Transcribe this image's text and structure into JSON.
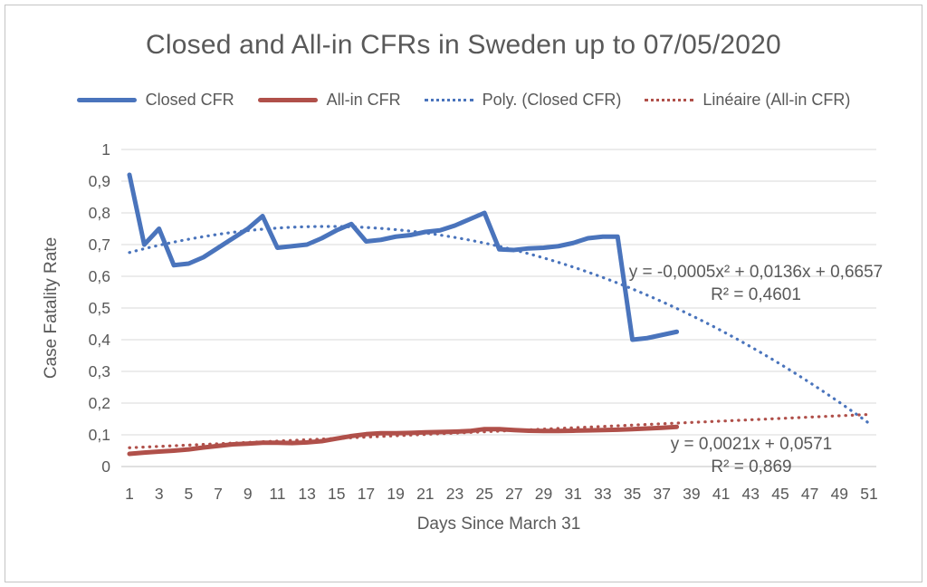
{
  "chart_data": {
    "type": "line",
    "title": "Closed and All-in CFRs in Sweden up to 07/05/2020",
    "xlabel": "Days Since March 31",
    "ylabel": "Case Fatality Rate",
    "decimal_separator": ",",
    "grid": "horizontal",
    "colors": {
      "closed_cfr_blue": "#4A74BC",
      "all_in_cfr_red": "#B0504A",
      "text": "#595959",
      "gridline": "#D9D9D9",
      "axis_line": "#C0C0C0"
    },
    "x_axis": {
      "min": 1,
      "max": 51,
      "ticks": [
        1,
        3,
        5,
        7,
        9,
        11,
        13,
        15,
        17,
        19,
        21,
        23,
        25,
        27,
        29,
        31,
        33,
        35,
        37,
        39,
        41,
        43,
        45,
        47,
        49,
        51
      ]
    },
    "y_axis": {
      "min": 0,
      "max": 1,
      "ticks": [
        {
          "value": 0,
          "label": "0"
        },
        {
          "value": 0.1,
          "label": "0,1"
        },
        {
          "value": 0.2,
          "label": "0,2"
        },
        {
          "value": 0.3,
          "label": "0,3"
        },
        {
          "value": 0.4,
          "label": "0,4"
        },
        {
          "value": 0.5,
          "label": "0,5"
        },
        {
          "value": 0.6,
          "label": "0,6"
        },
        {
          "value": 0.7,
          "label": "0,7"
        },
        {
          "value": 0.8,
          "label": "0,8"
        },
        {
          "value": 0.9,
          "label": "0,9"
        },
        {
          "value": 1,
          "label": "1"
        }
      ]
    },
    "series": [
      {
        "name": "Closed CFR",
        "color": "#4A74BC",
        "line_style": "solid",
        "x_start_day": 1,
        "values": [
          0.92,
          0.7,
          0.75,
          0.635,
          0.64,
          0.66,
          0.69,
          0.72,
          0.75,
          0.79,
          0.69,
          0.695,
          0.7,
          0.72,
          0.745,
          0.765,
          0.71,
          0.715,
          0.725,
          0.73,
          0.74,
          0.745,
          0.76,
          0.78,
          0.8,
          0.685,
          0.683,
          0.688,
          0.69,
          0.695,
          0.705,
          0.72,
          0.725,
          0.725,
          0.4,
          0.405,
          0.415,
          0.425
        ]
      },
      {
        "name": "All-in CFR",
        "color": "#B0504A",
        "line_style": "solid",
        "x_start_day": 1,
        "values": [
          0.04,
          0.044,
          0.047,
          0.05,
          0.054,
          0.06,
          0.065,
          0.07,
          0.072,
          0.075,
          0.075,
          0.074,
          0.076,
          0.08,
          0.088,
          0.096,
          0.102,
          0.105,
          0.105,
          0.106,
          0.108,
          0.109,
          0.11,
          0.112,
          0.118,
          0.118,
          0.115,
          0.113,
          0.112,
          0.112,
          0.113,
          0.114,
          0.115,
          0.116,
          0.118,
          0.12,
          0.122,
          0.125
        ]
      }
    ],
    "trendlines": [
      {
        "name": "Poly. (Closed CFR)",
        "applies_to": "Closed CFR",
        "type": "polynomial",
        "equation": "y = -0,0005x² + 0,0136x + 0,6657",
        "r2": "R² = 0,4601",
        "color": "#4A74BC",
        "x_range": [
          1,
          51
        ],
        "draw_coefficients": {
          "a": -0.000462,
          "b": 0.01325,
          "c": 0.66222
        }
      },
      {
        "name": "Linéaire (All-in CFR)",
        "applies_to": "All-in CFR",
        "type": "linear",
        "equation": "y = 0,0021x + 0,0571",
        "r2": "R² = 0,869",
        "color": "#B0504A",
        "x_range": [
          1,
          51
        ],
        "draw_coefficients": {
          "a": 0,
          "b": 0.0021,
          "c": 0.0571
        }
      }
    ],
    "legend": {
      "position": "top",
      "items": [
        {
          "label": "Closed CFR",
          "style": "solid",
          "color": "#4A74BC"
        },
        {
          "label": "All-in CFR",
          "style": "solid",
          "color": "#B0504A"
        },
        {
          "label": "Poly. (Closed CFR)",
          "style": "dotted",
          "color": "#4A74BC"
        },
        {
          "label": "Linéaire (All-in CFR)",
          "style": "dotted",
          "color": "#B0504A"
        }
      ]
    }
  }
}
